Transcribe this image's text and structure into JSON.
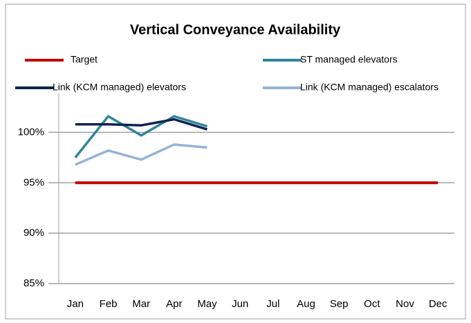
{
  "chart_data": {
    "type": "line",
    "title": "Vertical Conveyance Availability",
    "categories": [
      "Jan",
      "Feb",
      "Mar",
      "Apr",
      "May",
      "Jun",
      "Jul",
      "Aug",
      "Sep",
      "Oct",
      "Nov",
      "Dec"
    ],
    "series": [
      {
        "name": "Target",
        "color": "#c00000",
        "values": [
          95,
          95,
          95,
          95,
          95,
          95,
          95,
          95,
          95,
          95,
          95,
          95
        ]
      },
      {
        "name": "ST managed elevators",
        "color": "#31859c",
        "values": [
          97.5,
          101.6,
          99.7,
          101.6,
          100.6,
          null,
          null,
          null,
          null,
          null,
          null,
          null
        ]
      },
      {
        "name": "Link (KCM managed) elevators",
        "color": "#0f2350",
        "values": [
          100.8,
          100.8,
          100.7,
          101.3,
          100.3,
          null,
          null,
          null,
          null,
          null,
          null,
          null
        ]
      },
      {
        "name": "Link (KCM managed) escalators",
        "color": "#95b3d7",
        "values": [
          96.8,
          98.2,
          97.3,
          98.8,
          98.5,
          null,
          null,
          null,
          null,
          null,
          null,
          null
        ]
      }
    ],
    "ylim": [
      85,
      102.5
    ],
    "yticks": [
      {
        "value": 85,
        "label": "85%"
      },
      {
        "value": 90,
        "label": "90%"
      },
      {
        "value": 95,
        "label": "95%"
      },
      {
        "value": 100,
        "label": "100%"
      }
    ],
    "grid": true
  }
}
